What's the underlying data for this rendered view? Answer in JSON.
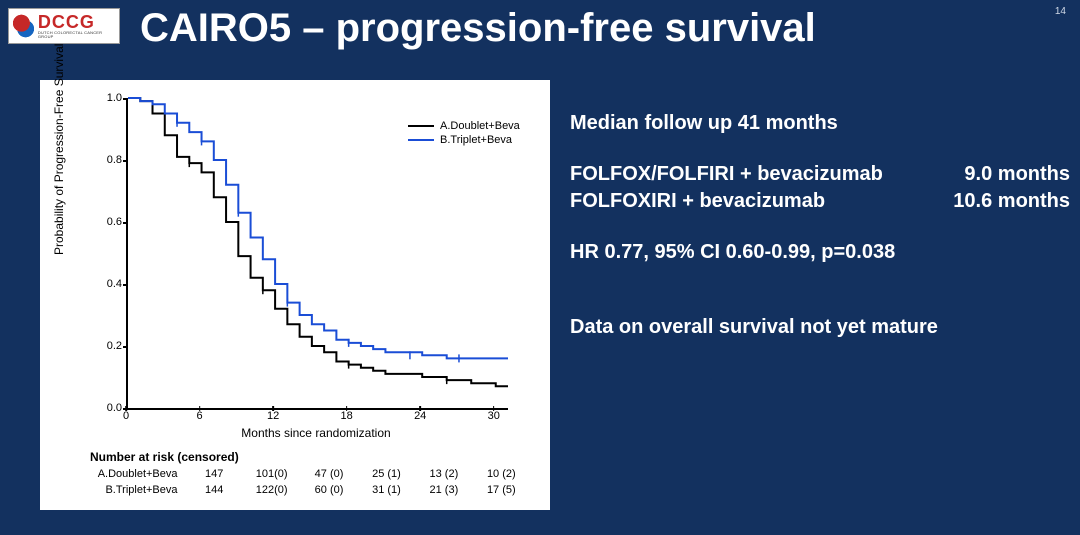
{
  "page_number": "14",
  "logo": {
    "acronym": "DCCG",
    "sub": "DUTCH COLORECTAL CANCER GROUP"
  },
  "title": "CAIRO5 – progression-free survival",
  "chart": {
    "type": "kaplan-meier",
    "background_color": "#ffffff",
    "axis_color": "#000000",
    "xlabel": "Months since randomization",
    "ylabel": "Probability of Progression-Free Survival",
    "label_fontsize": 12,
    "tick_fontsize": 11,
    "xlim": [
      0,
      31
    ],
    "ylim": [
      0.0,
      1.0
    ],
    "yticks": [
      0.0,
      0.2,
      0.4,
      0.6,
      0.8,
      1.0
    ],
    "xticks": [
      0,
      6,
      12,
      18,
      24,
      30
    ],
    "legend_pos": "top-right-inside",
    "series": [
      {
        "name": "A.Doublet+Beva",
        "color": "#000000",
        "line_width": 2,
        "points": [
          [
            0,
            1.0
          ],
          [
            1,
            0.99
          ],
          [
            2,
            0.95
          ],
          [
            3,
            0.88
          ],
          [
            4,
            0.81
          ],
          [
            5,
            0.79
          ],
          [
            6,
            0.76
          ],
          [
            7,
            0.68
          ],
          [
            8,
            0.6
          ],
          [
            9,
            0.49
          ],
          [
            10,
            0.42
          ],
          [
            11,
            0.38
          ],
          [
            12,
            0.32
          ],
          [
            13,
            0.27
          ],
          [
            14,
            0.23
          ],
          [
            15,
            0.2
          ],
          [
            16,
            0.18
          ],
          [
            17,
            0.15
          ],
          [
            18,
            0.14
          ],
          [
            19,
            0.13
          ],
          [
            20,
            0.12
          ],
          [
            21,
            0.11
          ],
          [
            22,
            0.11
          ],
          [
            24,
            0.1
          ],
          [
            26,
            0.09
          ],
          [
            28,
            0.08
          ],
          [
            30,
            0.07
          ],
          [
            31,
            0.07
          ]
        ],
        "censor_marks": [
          [
            5,
            0.79
          ],
          [
            11,
            0.38
          ],
          [
            18,
            0.14
          ],
          [
            26,
            0.09
          ]
        ]
      },
      {
        "name": "B.Triplet+Beva",
        "color": "#1a4dd6",
        "line_width": 2,
        "points": [
          [
            0,
            1.0
          ],
          [
            1,
            0.99
          ],
          [
            2,
            0.98
          ],
          [
            3,
            0.95
          ],
          [
            4,
            0.92
          ],
          [
            5,
            0.89
          ],
          [
            6,
            0.86
          ],
          [
            7,
            0.8
          ],
          [
            8,
            0.72
          ],
          [
            9,
            0.63
          ],
          [
            10,
            0.55
          ],
          [
            11,
            0.48
          ],
          [
            12,
            0.4
          ],
          [
            13,
            0.34
          ],
          [
            14,
            0.3
          ],
          [
            15,
            0.27
          ],
          [
            16,
            0.25
          ],
          [
            17,
            0.22
          ],
          [
            18,
            0.21
          ],
          [
            19,
            0.2
          ],
          [
            20,
            0.19
          ],
          [
            21,
            0.18
          ],
          [
            22,
            0.18
          ],
          [
            24,
            0.17
          ],
          [
            26,
            0.16
          ],
          [
            28,
            0.16
          ],
          [
            30,
            0.16
          ],
          [
            31,
            0.16
          ]
        ],
        "censor_marks": [
          [
            4,
            0.92
          ],
          [
            6,
            0.86
          ],
          [
            9,
            0.63
          ],
          [
            13,
            0.34
          ],
          [
            18,
            0.21
          ],
          [
            23,
            0.17
          ],
          [
            27,
            0.16
          ]
        ]
      }
    ],
    "number_at_risk": {
      "title": "Number at risk (censored)",
      "timepoints": [
        0,
        6,
        12,
        18,
        24,
        30
      ],
      "rows": [
        {
          "label": "A.Doublet+Beva",
          "values": [
            "147",
            "101(0)",
            "47 (0)",
            "25 (1)",
            "13 (2)",
            "10 (2)"
          ]
        },
        {
          "label": "B.Triplet+Beva",
          "values": [
            "144",
            "122(0)",
            "60 (0)",
            "31 (1)",
            "21 (3)",
            "17 (5)"
          ]
        }
      ]
    }
  },
  "stats": {
    "followup": "Median follow up 41 months",
    "arm1_label": "FOLFOX/FOLFIRI + bevacizumab",
    "arm1_value": "9.0 months",
    "arm2_label": "FOLFOXIRI + bevacizumab",
    "arm2_value": "10.6 months",
    "hr": "HR 0.77, 95% CI 0.60-0.99, p=0.038",
    "note": "Data on overall survival not yet mature"
  },
  "colors": {
    "slide_bg": "#13315f",
    "text": "#ffffff"
  }
}
